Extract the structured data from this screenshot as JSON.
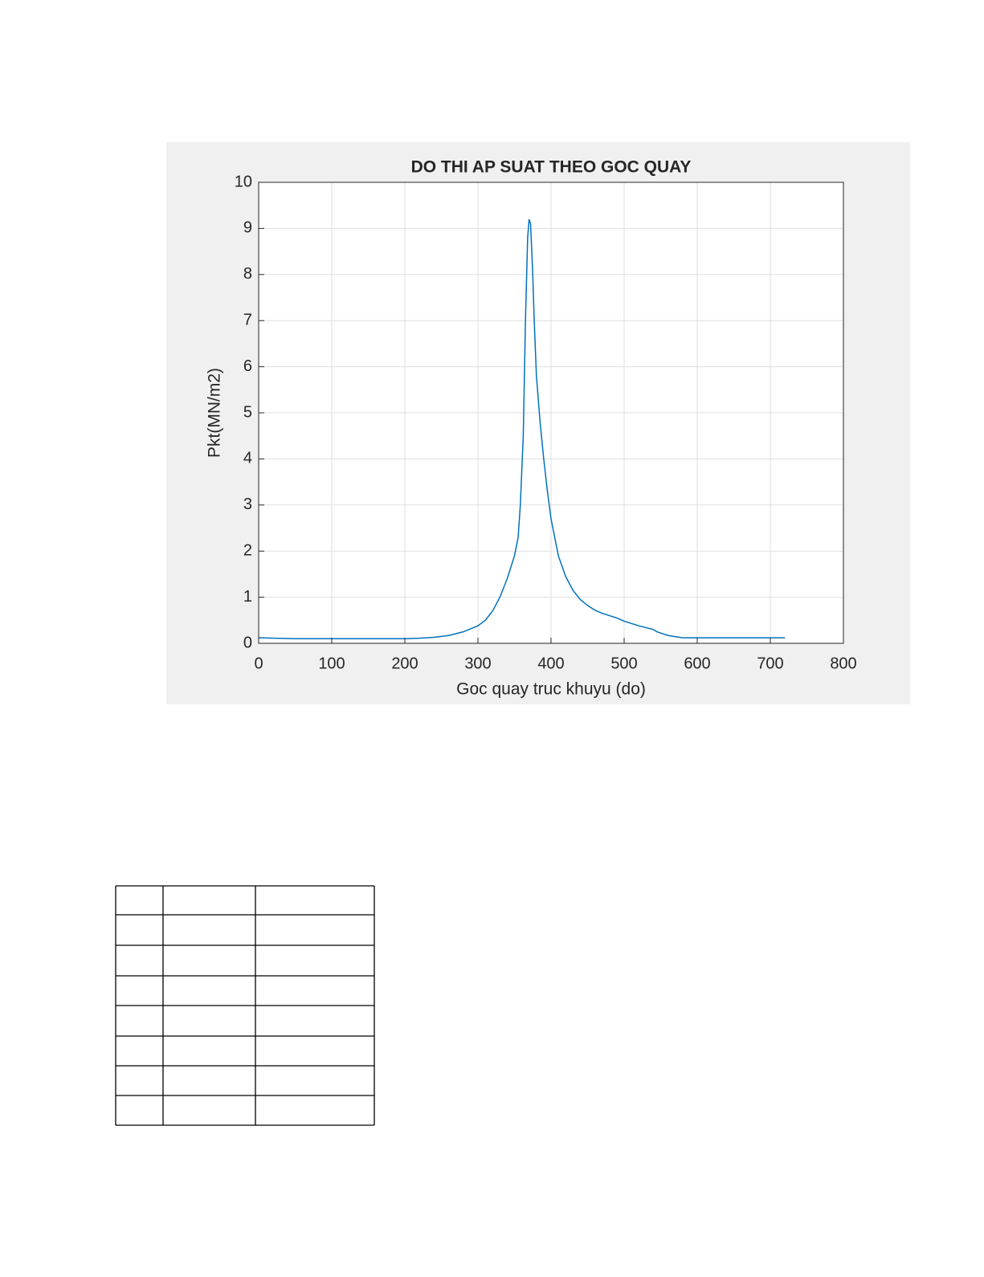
{
  "chart_data": {
    "type": "line",
    "title": "DO THI AP SUAT THEO GOC QUAY",
    "x_label": "Goc quay truc khuyu (do)",
    "y_label": "Pkt(MN/m2)",
    "x": [
      0,
      50,
      100,
      150,
      200,
      220,
      240,
      260,
      280,
      300,
      310,
      320,
      330,
      340,
      350,
      355,
      358,
      362,
      365,
      368,
      370,
      372,
      375,
      377,
      380,
      385,
      390,
      395,
      400,
      410,
      420,
      430,
      440,
      450,
      460,
      470,
      480,
      490,
      500,
      520,
      540,
      545,
      560,
      580,
      600,
      650,
      720
    ],
    "series": [
      {
        "name": "Pkt",
        "color": "#0072bd",
        "values": [
          0.12,
          0.1,
          0.1,
          0.1,
          0.1,
          0.11,
          0.13,
          0.17,
          0.25,
          0.38,
          0.5,
          0.7,
          1.0,
          1.4,
          1.9,
          2.3,
          3.0,
          4.5,
          7.0,
          8.8,
          9.2,
          9.1,
          8.0,
          7.0,
          5.8,
          4.8,
          4.0,
          3.3,
          2.7,
          1.9,
          1.45,
          1.15,
          0.95,
          0.82,
          0.72,
          0.65,
          0.6,
          0.55,
          0.48,
          0.38,
          0.3,
          0.25,
          0.17,
          0.12,
          0.12,
          0.12,
          0.12
        ]
      }
    ],
    "xlim": [
      0,
      800
    ],
    "xticks": [
      0,
      100,
      200,
      300,
      400,
      500,
      600,
      700,
      800
    ],
    "ylim": [
      0,
      10
    ],
    "yticks": [
      0,
      1,
      2,
      3,
      4,
      5,
      6,
      7,
      8,
      9,
      10
    ],
    "grid": true
  }
}
